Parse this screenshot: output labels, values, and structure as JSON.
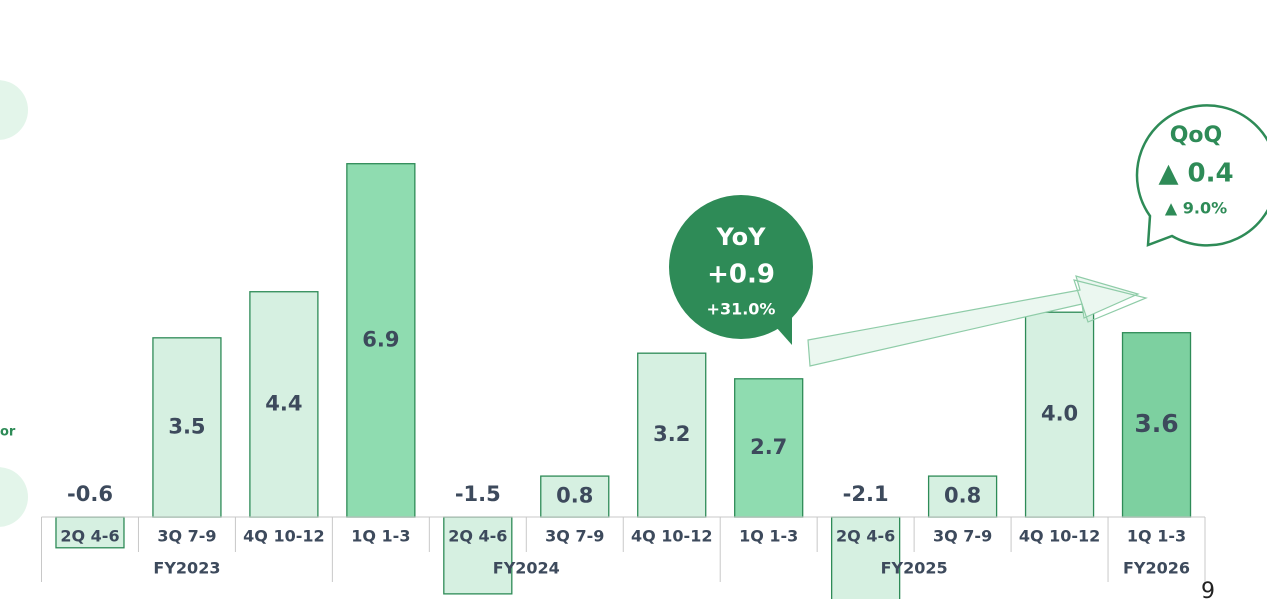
{
  "chart_data": {
    "type": "bar",
    "categories": [
      "2Q 4-6",
      "3Q 7-9",
      "4Q 10-12",
      "1Q 1-3",
      "2Q 4-6",
      "3Q 7-9",
      "4Q 10-12",
      "1Q 1-3",
      "2Q 4-6",
      "3Q 7-9",
      "4Q 10-12",
      "1Q 1-3"
    ],
    "fiscal_years": [
      "FY2023",
      "FY2024",
      "FY2025",
      "FY2026"
    ],
    "values": [
      -0.6,
      3.5,
      4.4,
      6.9,
      -1.5,
      0.8,
      3.2,
      2.7,
      -2.1,
      0.8,
      4.0,
      3.6
    ],
    "value_labels": [
      "-0.6",
      "3.5",
      "4.4",
      "6.9",
      "-1.5",
      "0.8",
      "3.2",
      "2.7",
      "-2.1",
      "0.8",
      "4.0",
      "3.6"
    ],
    "colors": [
      "#d6f0e1",
      "#d6f0e1",
      "#d6f0e1",
      "#8fdcb0",
      "#d6f0e1",
      "#d6f0e1",
      "#d6f0e1",
      "#8fdcb0",
      "#d6f0e1",
      "#d6f0e1",
      "#d6f0e1",
      "#7dd0a0"
    ],
    "ylim": [
      -1.6,
      8.3
    ],
    "yoy": {
      "title": "YoY",
      "value": "+0.9",
      "percent": "+31.0%"
    },
    "qoq": {
      "title": "QoQ",
      "value": "▲ 0.4",
      "percent": "▲ 9.0%"
    },
    "side_text": "or",
    "page_number": "9"
  }
}
